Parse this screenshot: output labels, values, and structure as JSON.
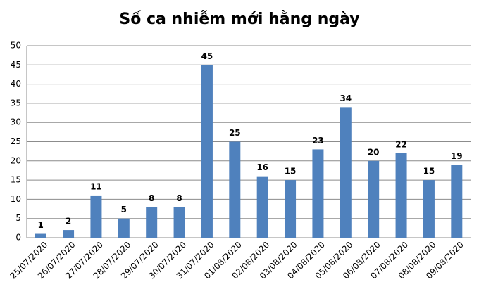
{
  "chart_data": {
    "type": "bar",
    "title": "Số ca nhiễm mới hằng ngày",
    "categories": [
      "25/07/2020",
      "26/07/2020",
      "27/07/2020",
      "28/07/2020",
      "29/07/2020",
      "30/07/2020",
      "31/07/2020",
      "01/08/2020",
      "02/08/2020",
      "03/08/2020",
      "04/08/2020",
      "05/08/2020",
      "06/08/2020",
      "07/08/2020",
      "08/08/2020",
      "09/08/2020"
    ],
    "values": [
      1,
      2,
      11,
      5,
      8,
      8,
      45,
      25,
      16,
      15,
      23,
      34,
      20,
      22,
      15,
      19
    ],
    "color": "#4f81bd",
    "ylim": [
      0,
      50
    ],
    "yticks": [
      0,
      5,
      10,
      15,
      20,
      25,
      30,
      35,
      40,
      45,
      50
    ],
    "grid": true
  }
}
